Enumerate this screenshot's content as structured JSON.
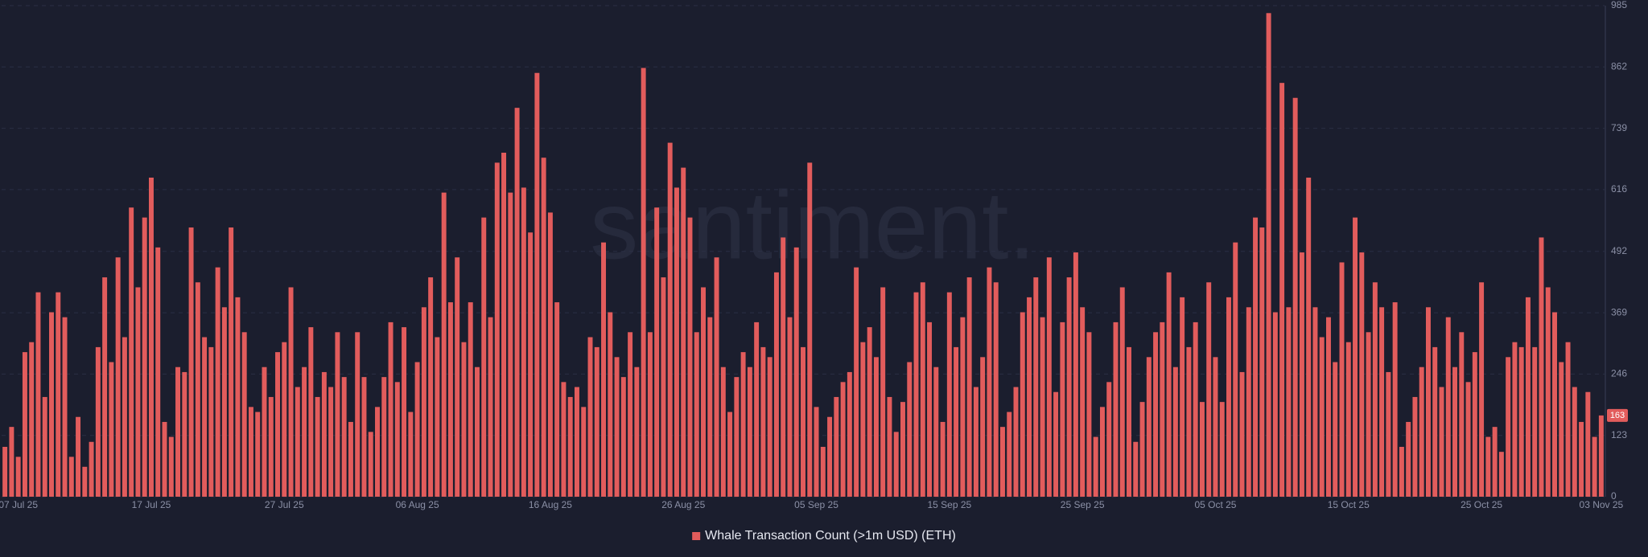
{
  "chart_data": {
    "type": "bar",
    "watermark": "santiment.",
    "categories": [
      null,
      null,
      "07 Jul 25",
      null,
      null,
      null,
      null,
      null,
      null,
      null,
      null,
      null,
      null,
      null,
      null,
      null,
      null,
      null,
      null,
      null,
      null,
      null,
      "17 Jul 25",
      null,
      null,
      null,
      null,
      null,
      null,
      null,
      null,
      null,
      null,
      null,
      null,
      null,
      null,
      null,
      null,
      null,
      null,
      null,
      "27 Jul 25",
      null,
      null,
      null,
      null,
      null,
      null,
      null,
      null,
      null,
      null,
      null,
      null,
      null,
      null,
      null,
      null,
      null,
      null,
      null,
      "06 Aug 25",
      null,
      null,
      null,
      null,
      null,
      null,
      null,
      null,
      null,
      null,
      null,
      null,
      null,
      null,
      null,
      null,
      null,
      null,
      null,
      "16 Aug 25",
      null,
      null,
      null,
      null,
      null,
      null,
      null,
      null,
      null,
      null,
      null,
      null,
      null,
      null,
      null,
      null,
      null,
      null,
      null,
      "26 Aug 25",
      null,
      null,
      null,
      null,
      null,
      null,
      null,
      null,
      null,
      null,
      null,
      null,
      null,
      null,
      null,
      null,
      null,
      null,
      null,
      "05 Sep 25",
      null,
      null,
      null,
      null,
      null,
      null,
      null,
      null,
      null,
      null,
      null,
      null,
      null,
      null,
      null,
      null,
      null,
      null,
      null,
      "15 Sep 25",
      null,
      null,
      null,
      null,
      null,
      null,
      null,
      null,
      null,
      null,
      null,
      null,
      null,
      null,
      null,
      null,
      null,
      null,
      null,
      "25 Sep 25",
      null,
      null,
      null,
      null,
      null,
      null,
      null,
      null,
      null,
      null,
      null,
      null,
      null,
      null,
      null,
      null,
      null,
      null,
      null,
      "05 Oct 25",
      null,
      null,
      null,
      null,
      null,
      null,
      null,
      null,
      null,
      null,
      null,
      null,
      null,
      null,
      null,
      null,
      null,
      null,
      null,
      "15 Oct 25",
      null,
      null,
      null,
      null,
      null,
      null,
      null,
      null,
      null,
      null,
      null,
      null,
      null,
      null,
      null,
      null,
      null,
      null,
      null,
      "25 Oct 25",
      null,
      null,
      null,
      null,
      null,
      null,
      null,
      null,
      null,
      null,
      null,
      null,
      null,
      null,
      null,
      null,
      null,
      "03 Nov 25"
    ],
    "series": [
      {
        "name": "Whale Transaction Count (>1m USD) (ETH)",
        "color": "#e25c5c",
        "values": [
          100,
          140,
          80,
          290,
          310,
          410,
          200,
          370,
          410,
          360,
          80,
          160,
          60,
          110,
          300,
          440,
          270,
          480,
          320,
          580,
          420,
          560,
          640,
          500,
          150,
          120,
          260,
          250,
          540,
          430,
          320,
          300,
          460,
          380,
          540,
          400,
          330,
          180,
          170,
          260,
          200,
          290,
          310,
          420,
          220,
          260,
          340,
          200,
          250,
          220,
          330,
          240,
          150,
          330,
          240,
          130,
          180,
          240,
          350,
          230,
          340,
          170,
          270,
          380,
          440,
          320,
          610,
          390,
          480,
          310,
          390,
          260,
          560,
          360,
          670,
          690,
          610,
          780,
          620,
          530,
          850,
          680,
          570,
          390,
          230,
          200,
          220,
          180,
          320,
          300,
          510,
          370,
          280,
          240,
          330,
          260,
          860,
          330,
          580,
          440,
          710,
          620,
          660,
          560,
          330,
          420,
          360,
          480,
          260,
          170,
          240,
          290,
          260,
          350,
          300,
          280,
          450,
          520,
          360,
          500,
          300,
          670,
          180,
          100,
          160,
          200,
          230,
          250,
          460,
          310,
          340,
          280,
          420,
          200,
          130,
          190,
          270,
          410,
          430,
          350,
          260,
          150,
          410,
          300,
          360,
          440,
          220,
          280,
          460,
          430,
          140,
          170,
          220,
          370,
          400,
          440,
          360,
          480,
          210,
          350,
          440,
          490,
          380,
          330,
          120,
          180,
          230,
          350,
          420,
          300,
          110,
          190,
          280,
          330,
          350,
          450,
          260,
          400,
          300,
          350,
          190,
          430,
          280,
          190,
          400,
          510,
          250,
          380,
          560,
          540,
          970,
          370,
          830,
          380,
          800,
          490,
          640,
          380,
          320,
          360,
          270,
          470,
          310,
          560,
          490,
          330,
          430,
          380,
          250,
          390,
          100,
          150,
          200,
          260,
          380,
          300,
          220,
          360,
          260,
          330,
          230,
          290,
          430,
          120,
          140,
          90,
          280,
          310,
          300,
          400,
          300,
          520,
          420,
          370,
          270,
          310,
          220,
          150,
          210,
          120,
          163
        ]
      }
    ],
    "ylim": [
      0,
      985
    ],
    "yticks": [
      0,
      123,
      246,
      369,
      492,
      616,
      739,
      862,
      985
    ],
    "grid": true
  }
}
